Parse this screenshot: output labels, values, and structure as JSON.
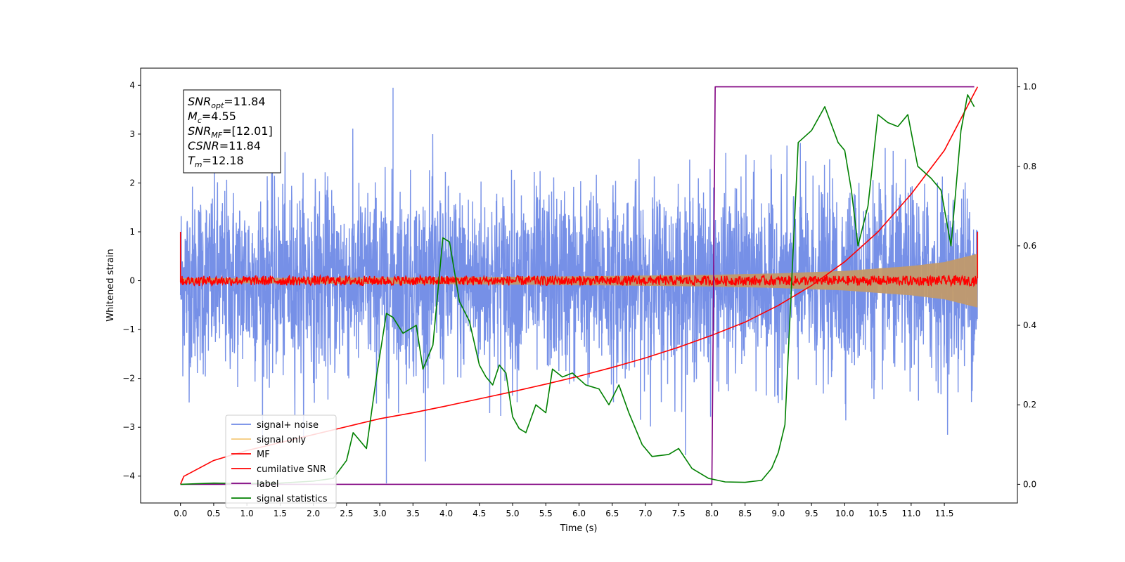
{
  "chart_data": {
    "type": "line",
    "xlabel": "Time (s)",
    "ylabel": "Whitened strain",
    "xlim": [
      -0.6,
      12.6
    ],
    "ylim": [
      -4.55,
      4.35
    ],
    "y2lim": [
      -0.047,
      1.047
    ],
    "x_ticks": [
      0.0,
      0.5,
      1.0,
      1.5,
      2.0,
      2.5,
      3.0,
      3.5,
      4.0,
      4.5,
      5.0,
      5.5,
      6.0,
      6.5,
      7.0,
      7.5,
      8.0,
      8.5,
      9.0,
      9.5,
      10.0,
      10.5,
      11.0,
      11.5
    ],
    "x_tick_labels": [
      "0.0",
      "0.5",
      "1.0",
      "1.5",
      "2.0",
      "2.5",
      "3.0",
      "3.5",
      "4.0",
      "4.5",
      "5.0",
      "5.5",
      "6.0",
      "6.5",
      "7.0",
      "7.5",
      "8.0",
      "8.5",
      "9.0",
      "9.5",
      "10.0",
      "10.5",
      "11.0",
      "11.5"
    ],
    "y_ticks": [
      -4,
      -3,
      -2,
      -1,
      0,
      1,
      2,
      3,
      4
    ],
    "y_tick_labels": [
      "−4",
      "−3",
      "−2",
      "−1",
      "0",
      "1",
      "2",
      "3",
      "4"
    ],
    "y2_ticks": [
      0.0,
      0.2,
      0.4,
      0.6,
      0.8,
      1.0
    ],
    "y2_tick_labels": [
      "0.0",
      "0.2",
      "0.4",
      "0.6",
      "0.8",
      "1.0"
    ],
    "legend_position": "lower-left",
    "grid": false,
    "series": [
      {
        "name": "signal+ noise",
        "axis": "left",
        "color": "#6f8ae6",
        "kind": "noise-band",
        "x_range": [
          0.0,
          12.0
        ],
        "std": 0.95,
        "min": -4.15,
        "max": 3.95,
        "note_values": {
          "spike_max": [
            3.2,
            3.95
          ],
          "spike_min": [
            3.1,
            -4.15
          ]
        }
      },
      {
        "name": "signal only",
        "axis": "left",
        "color": "#f5c97a",
        "kind": "chirp-envelope",
        "x": [
          0.0,
          2.0,
          4.0,
          6.0,
          8.0,
          9.0,
          10.0,
          11.0,
          11.5,
          12.0
        ],
        "amplitude": [
          0.05,
          0.06,
          0.07,
          0.09,
          0.12,
          0.15,
          0.2,
          0.3,
          0.38,
          0.55
        ]
      },
      {
        "name": "MF",
        "axis": "left",
        "color": "#ff0000",
        "kind": "noisy-around-zero",
        "x_range": [
          0.0,
          12.0
        ],
        "amplitude": 0.1,
        "start_value": 1.0,
        "end_value": 1.0
      },
      {
        "name": "cumilative SNR",
        "axis": "right",
        "color": "#ff0000",
        "x": [
          0.0,
          0.05,
          0.5,
          1.0,
          1.5,
          2.0,
          2.5,
          3.0,
          3.5,
          4.0,
          4.5,
          5.0,
          5.5,
          6.0,
          6.5,
          7.0,
          7.5,
          8.0,
          8.5,
          9.0,
          9.5,
          10.0,
          10.5,
          11.0,
          11.5,
          12.0
        ],
        "values": [
          0.0,
          0.02,
          0.06,
          0.085,
          0.105,
          0.125,
          0.145,
          0.165,
          0.18,
          0.197,
          0.215,
          0.233,
          0.252,
          0.272,
          0.294,
          0.318,
          0.345,
          0.375,
          0.408,
          0.45,
          0.5,
          0.56,
          0.635,
          0.73,
          0.84,
          1.0
        ]
      },
      {
        "name": "label",
        "axis": "right",
        "color": "#800080",
        "x": [
          0.0,
          8.0,
          8.05,
          11.95
        ],
        "values": [
          0.0,
          0.0,
          1.0,
          1.0
        ]
      },
      {
        "name": "signal statistics",
        "axis": "right",
        "color": "#008000",
        "x": [
          0.0,
          0.5,
          1.0,
          1.5,
          2.0,
          2.3,
          2.5,
          2.6,
          2.8,
          2.95,
          3.1,
          3.2,
          3.35,
          3.55,
          3.65,
          3.8,
          3.95,
          4.05,
          4.2,
          4.35,
          4.5,
          4.6,
          4.7,
          4.8,
          4.9,
          5.0,
          5.1,
          5.2,
          5.35,
          5.5,
          5.6,
          5.75,
          5.9,
          6.1,
          6.3,
          6.45,
          6.6,
          6.75,
          6.95,
          7.1,
          7.35,
          7.5,
          7.7,
          7.95,
          8.2,
          8.5,
          8.75,
          8.9,
          9.0,
          9.1,
          9.3,
          9.5,
          9.7,
          9.9,
          10.0,
          10.1,
          10.2,
          10.35,
          10.5,
          10.65,
          10.8,
          10.95,
          11.1,
          11.3,
          11.45,
          11.6,
          11.75,
          11.85,
          11.95
        ],
        "values": [
          0.0,
          0.003,
          0.002,
          0.003,
          0.008,
          0.015,
          0.06,
          0.13,
          0.09,
          0.27,
          0.43,
          0.42,
          0.38,
          0.4,
          0.29,
          0.35,
          0.62,
          0.61,
          0.46,
          0.41,
          0.3,
          0.27,
          0.25,
          0.3,
          0.28,
          0.17,
          0.14,
          0.13,
          0.2,
          0.18,
          0.29,
          0.27,
          0.28,
          0.25,
          0.24,
          0.2,
          0.25,
          0.18,
          0.1,
          0.07,
          0.075,
          0.09,
          0.04,
          0.015,
          0.006,
          0.005,
          0.01,
          0.04,
          0.08,
          0.15,
          0.86,
          0.89,
          0.95,
          0.86,
          0.84,
          0.74,
          0.6,
          0.7,
          0.93,
          0.91,
          0.9,
          0.93,
          0.8,
          0.77,
          0.74,
          0.6,
          0.89,
          0.98,
          0.95
        ]
      }
    ]
  },
  "info_box": {
    "lines": [
      {
        "var": "SNR",
        "sub": "opt",
        "value": "=11.84"
      },
      {
        "var": "M",
        "sub": "c",
        "value": "=4.55"
      },
      {
        "var": "SNR",
        "sub": "MF",
        "value": "=[12.01]"
      },
      {
        "var": "CSNR",
        "sub": "",
        "value": "=11.84"
      },
      {
        "var": "T",
        "sub": "m",
        "value": "=12.18"
      }
    ]
  }
}
